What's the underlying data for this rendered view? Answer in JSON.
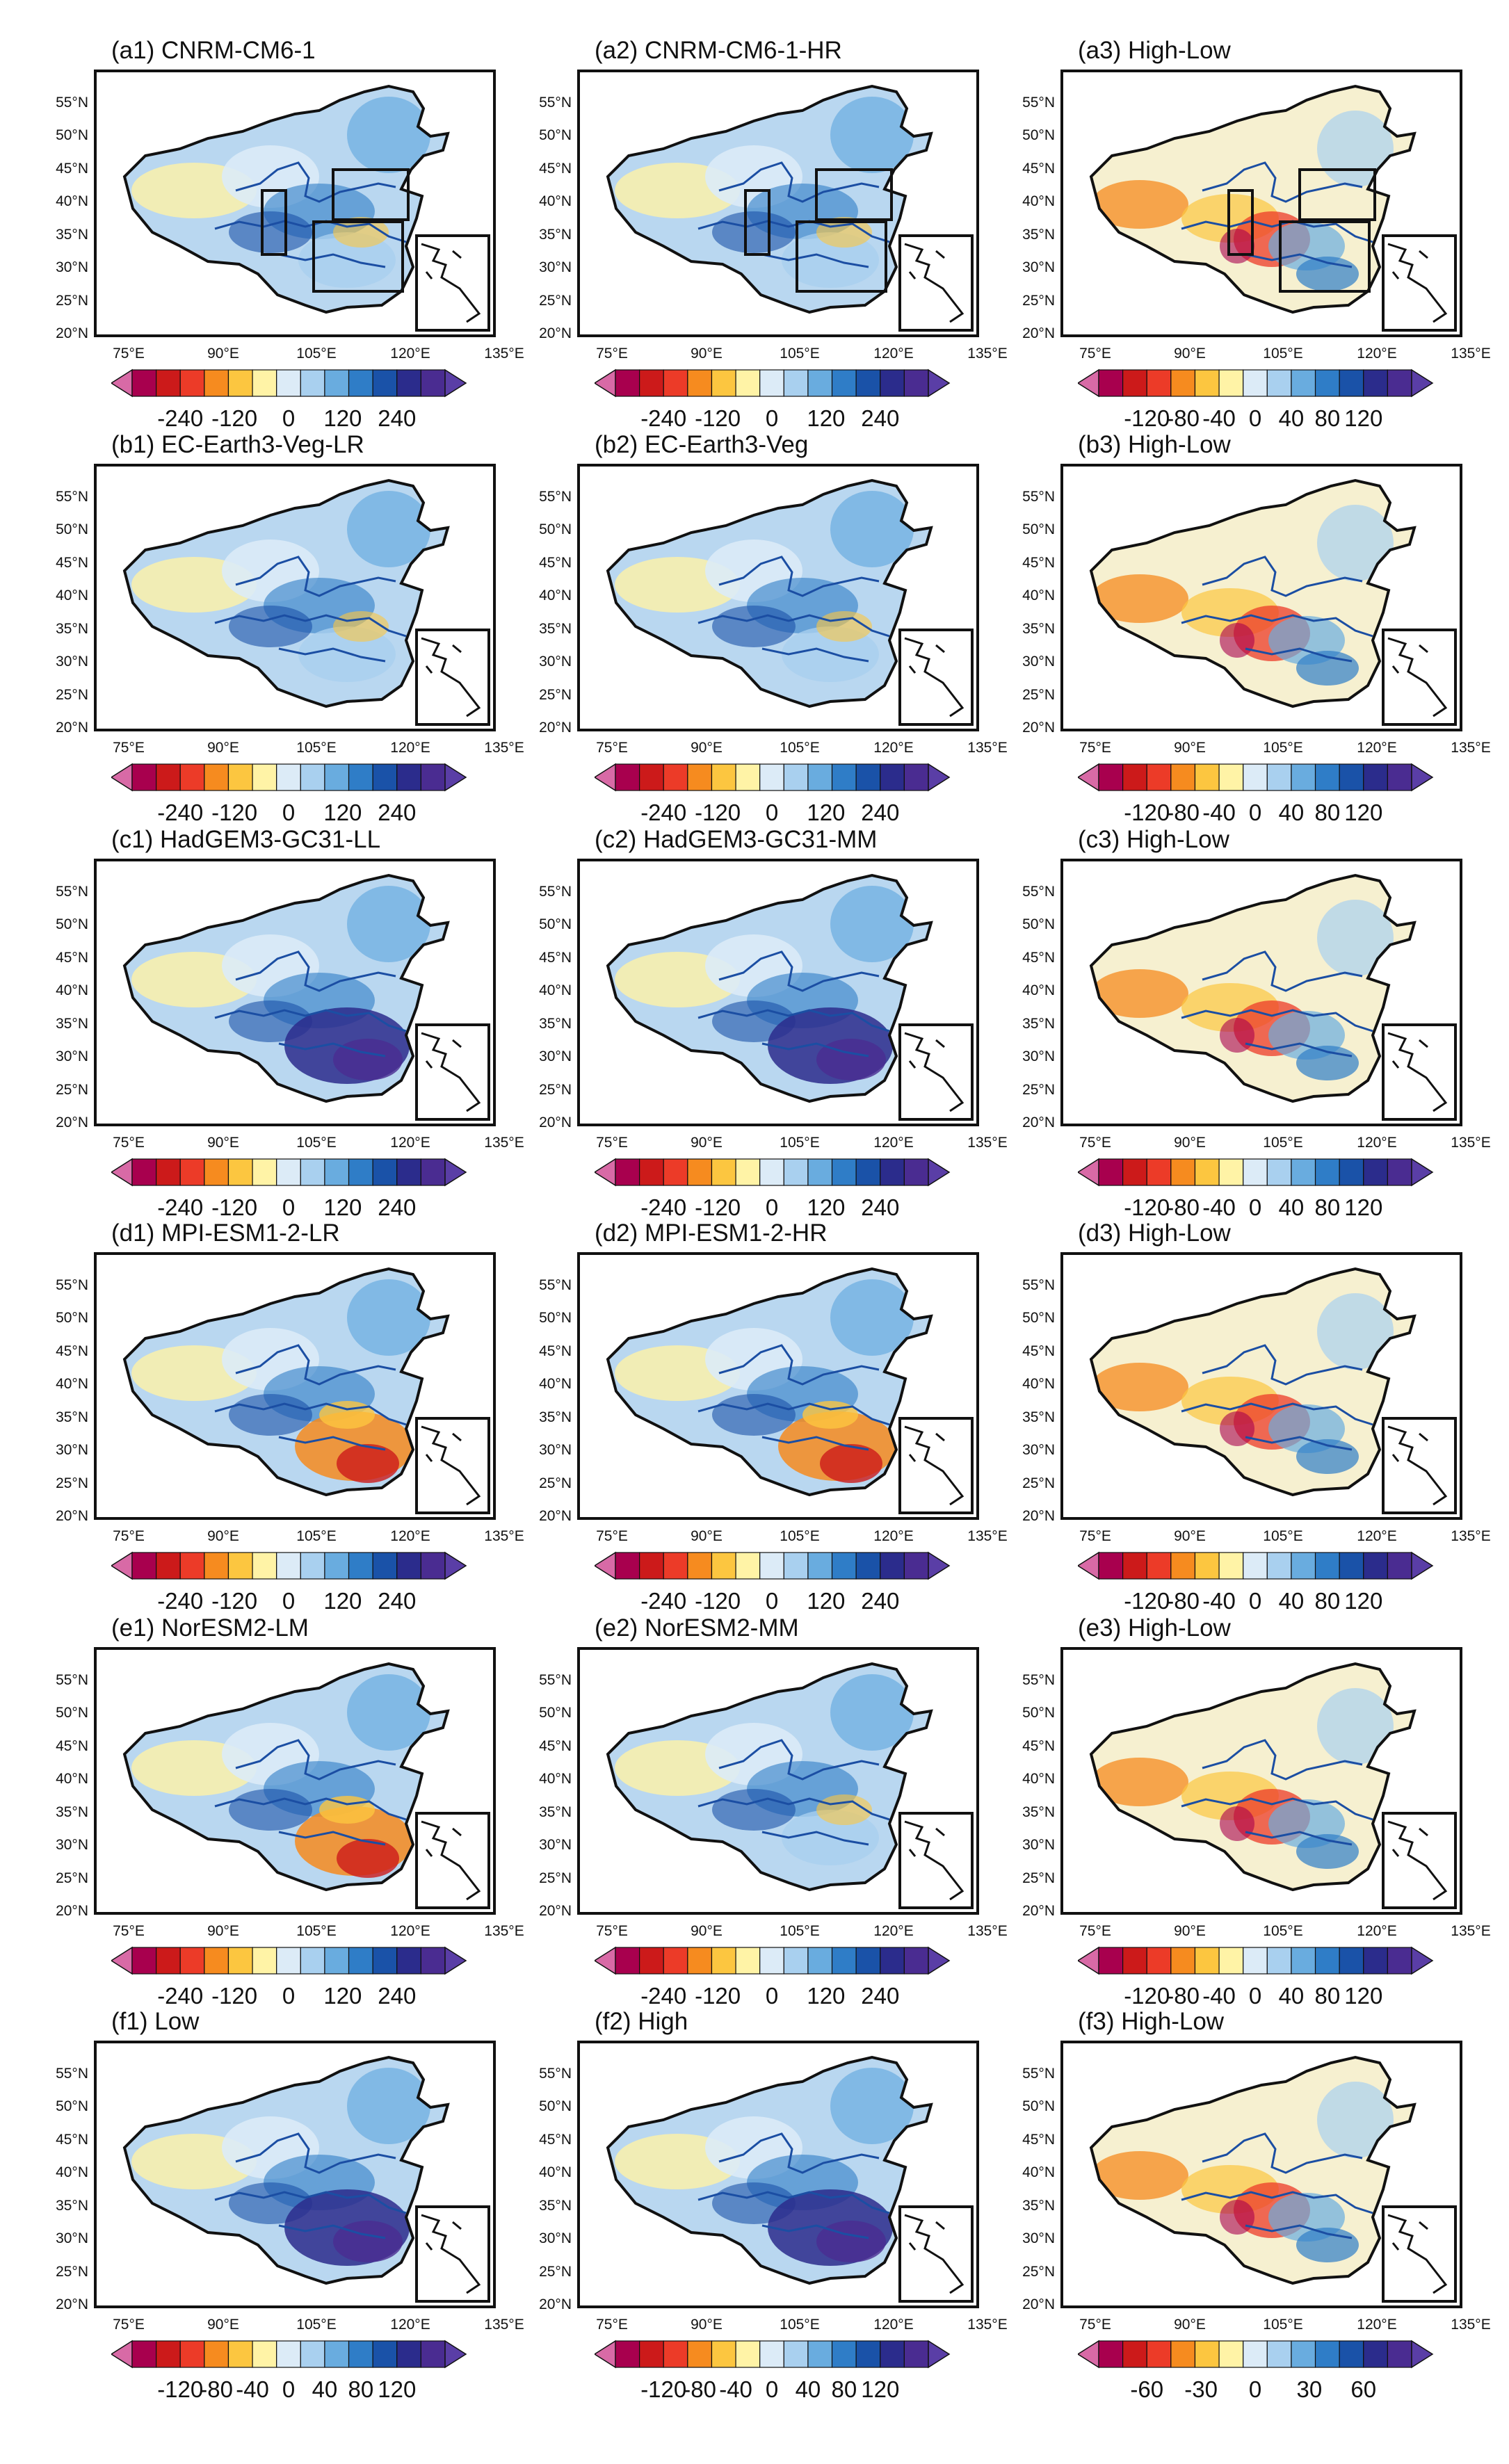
{
  "figure": {
    "lat_ticks": [
      "55°N",
      "50°N",
      "45°N",
      "40°N",
      "35°N",
      "30°N",
      "25°N",
      "20°N"
    ],
    "lon_ticks": [
      "75°E",
      "90°E",
      "105°E",
      "120°E",
      "135°E"
    ],
    "palettes": {
      "div12": [
        "#a8004e",
        "#cc1a1a",
        "#ec3b28",
        "#f68b1f",
        "#fcc640",
        "#fff3a6",
        "#dcebf7",
        "#a9d0ef",
        "#69acdf",
        "#2f7dc7",
        "#1a52a8",
        "#2b2c8c",
        "#4a2c91"
      ]
    },
    "colors": {
      "river": "#1b4ea3",
      "land_default": "#b9d7f0",
      "lower_triangle": "#d86aa6",
      "upper_triangle": "#5a3ea6"
    }
  },
  "panels": [
    {
      "title": "(a1) CNRM-CM6-1",
      "cbar_labels": [
        "-240",
        "-120",
        "0",
        "120",
        "240"
      ],
      "scheme": "cool",
      "boxes": true
    },
    {
      "title": "(a2) CNRM-CM6-1-HR",
      "cbar_labels": [
        "-240",
        "-120",
        "0",
        "120",
        "240"
      ],
      "scheme": "cool",
      "boxes": true
    },
    {
      "title": "(a3) High-Low",
      "cbar_labels": [
        "-120",
        "-80",
        "-40",
        "0",
        "40",
        "80",
        "120"
      ],
      "scheme": "mixed",
      "boxes": true
    },
    {
      "title": "(b1) EC-Earth3-Veg-LR",
      "cbar_labels": [
        "-240",
        "-120",
        "0",
        "120",
        "240"
      ],
      "scheme": "cool",
      "boxes": false
    },
    {
      "title": "(b2) EC-Earth3-Veg",
      "cbar_labels": [
        "-240",
        "-120",
        "0",
        "120",
        "240"
      ],
      "scheme": "cool",
      "boxes": false
    },
    {
      "title": "(b3) High-Low",
      "cbar_labels": [
        "-120",
        "-80",
        "-40",
        "0",
        "40",
        "80",
        "120"
      ],
      "scheme": "mixed",
      "boxes": false
    },
    {
      "title": "(c1) HadGEM3-GC31-LL",
      "cbar_labels": [
        "-240",
        "-120",
        "0",
        "120",
        "240"
      ],
      "scheme": "deep",
      "boxes": false
    },
    {
      "title": "(c2) HadGEM3-GC31-MM",
      "cbar_labels": [
        "-240",
        "-120",
        "0",
        "120",
        "240"
      ],
      "scheme": "deep",
      "boxes": false
    },
    {
      "title": "(c3) High-Low",
      "cbar_labels": [
        "-120",
        "-80",
        "-40",
        "0",
        "40",
        "80",
        "120"
      ],
      "scheme": "warm",
      "boxes": false
    },
    {
      "title": "(d1) MPI-ESM1-2-LR",
      "cbar_labels": [
        "-240",
        "-120",
        "0",
        "120",
        "240"
      ],
      "scheme": "south-warm",
      "boxes": false
    },
    {
      "title": "(d2) MPI-ESM1-2-HR",
      "cbar_labels": [
        "-240",
        "-120",
        "0",
        "120",
        "240"
      ],
      "scheme": "south-warm",
      "boxes": false
    },
    {
      "title": "(d3) High-Low",
      "cbar_labels": [
        "-120",
        "-80",
        "-40",
        "0",
        "40",
        "80",
        "120"
      ],
      "scheme": "warm",
      "boxes": false
    },
    {
      "title": "(e1) NorESM2-LM",
      "cbar_labels": [
        "-240",
        "-120",
        "0",
        "120",
        "240"
      ],
      "scheme": "south-warm",
      "boxes": false
    },
    {
      "title": "(e2) NorESM2-MM",
      "cbar_labels": [
        "-240",
        "-120",
        "0",
        "120",
        "240"
      ],
      "scheme": "cool",
      "boxes": false
    },
    {
      "title": "(e3) High-Low",
      "cbar_labels": [
        "-120",
        "-80",
        "-40",
        "0",
        "40",
        "80",
        "120"
      ],
      "scheme": "mixed",
      "boxes": false
    },
    {
      "title": "(f1) Low",
      "cbar_labels": [
        "-120",
        "-80",
        "-40",
        "0",
        "40",
        "80",
        "120"
      ],
      "scheme": "deep",
      "boxes": false
    },
    {
      "title": "(f2) High",
      "cbar_labels": [
        "-120",
        "-80",
        "-40",
        "0",
        "40",
        "80",
        "120"
      ],
      "scheme": "deep",
      "boxes": false
    },
    {
      "title": "(f3) High-Low",
      "cbar_labels": [
        "-60",
        "-30",
        "0",
        "30",
        "60"
      ],
      "scheme": "warm",
      "boxes": false
    }
  ]
}
